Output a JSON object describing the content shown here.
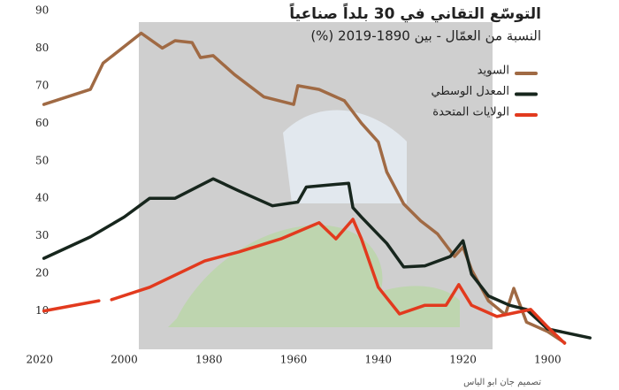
{
  "chart_data": {
    "type": "line",
    "title": "التوسّع التقاني في 30 بلداً صناعياً",
    "subtitle": "النسبة من العمّال - بين 1890-2019 (%)",
    "credit": "تصميم جان ابو الياس",
    "xlim": [
      2021,
      1889
    ],
    "xticks": [
      2020,
      2000,
      1980,
      1960,
      1940,
      1920,
      1900
    ],
    "ylim": [
      0,
      90
    ],
    "yticks": [
      10,
      20,
      30,
      40,
      50,
      60,
      70,
      80,
      90
    ],
    "legend": "top-right",
    "series": [
      {
        "name": "السويد",
        "color": "#a06a44",
        "x": [
          2019,
          2008,
          2005,
          1996,
          1991,
          1988,
          1984,
          1982,
          1979,
          1974,
          1967,
          1960,
          1959,
          1954,
          1948,
          1944,
          1940,
          1938,
          1934,
          1930,
          1926,
          1922,
          1920,
          1918,
          1914,
          1910,
          1908,
          1905,
          1900,
          1896
        ],
        "values": [
          65,
          69,
          76,
          84,
          80,
          82,
          81.5,
          77.5,
          78,
          73,
          67,
          65,
          70,
          69,
          66,
          60,
          55,
          47,
          38.5,
          34,
          30.5,
          24.5,
          27,
          21,
          12.7,
          9,
          16,
          7,
          4.5,
          1.5
        ]
      },
      {
        "name": "المعدل الوسطي",
        "color": "#17261d",
        "x": [
          2019,
          2008,
          2000,
          1994,
          1988,
          1979,
          1973,
          1965,
          1959,
          1957,
          1947,
          1946,
          1944,
          1941,
          1938,
          1934,
          1929,
          1923,
          1920,
          1918,
          1914,
          1909,
          1905,
          1900,
          1890
        ],
        "values": [
          24,
          29.7,
          35,
          40,
          40,
          45.2,
          42,
          38,
          39,
          43,
          44,
          37.5,
          35,
          31.5,
          28,
          21.7,
          22,
          24.5,
          28.7,
          19.8,
          14,
          11.5,
          10.4,
          5.2,
          2.8
        ]
      },
      {
        "name": "الولايات المتحدة",
        "color": "#e23a1e",
        "x": [
          2019,
          2006,
          2005,
          2003,
          1994,
          1981,
          1973,
          1963,
          1954,
          1950,
          1946,
          1944,
          1940,
          1935,
          1929,
          1924,
          1921,
          1918,
          1912,
          1904,
          1900,
          1896
        ],
        "values": [
          10,
          12.7,
          null,
          13,
          16.3,
          23.3,
          25.7,
          29.2,
          33.5,
          29.2,
          34.4,
          29.2,
          16.3,
          9.2,
          11.5,
          11.5,
          17,
          11.5,
          8.5,
          10.4,
          5.7,
          1.4
        ]
      }
    ]
  }
}
